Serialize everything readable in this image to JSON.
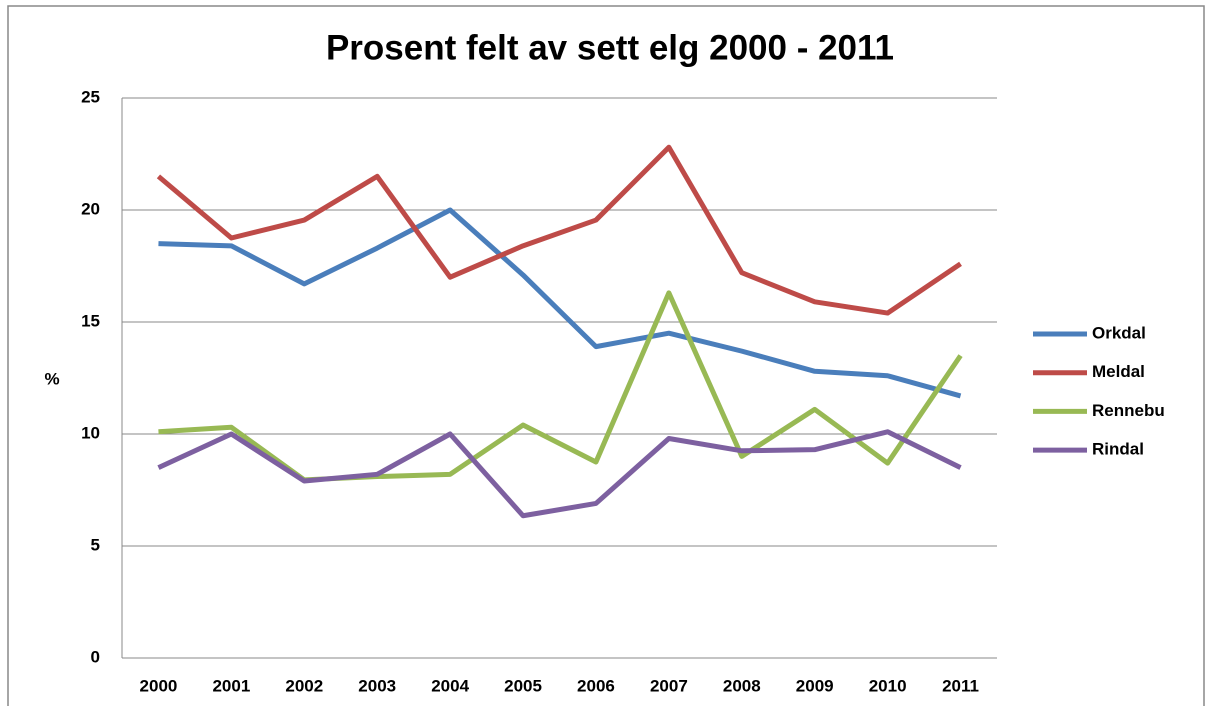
{
  "chart_data": {
    "type": "line",
    "title": "Prosent felt av sett elg 2000 - 2011",
    "y_label": "%",
    "categories": [
      "2000",
      "2001",
      "2002",
      "2003",
      "2004",
      "2005",
      "2006",
      "2007",
      "2008",
      "2009",
      "2010",
      "2011"
    ],
    "series": [
      {
        "name": "Orkdal",
        "color": "#4a7ebb",
        "values": [
          18.5,
          18.4,
          16.7,
          18.3,
          20.0,
          17.1,
          13.9,
          14.5,
          13.7,
          12.8,
          12.6,
          11.7
        ]
      },
      {
        "name": "Meldal",
        "color": "#be4b48",
        "values": [
          21.5,
          18.75,
          19.55,
          21.5,
          17.0,
          18.4,
          19.55,
          22.8,
          17.2,
          15.9,
          15.4,
          17.6
        ]
      },
      {
        "name": "Rennebu",
        "color": "#98b954",
        "values": [
          10.1,
          10.3,
          7.95,
          8.1,
          8.2,
          10.4,
          8.75,
          16.3,
          9.0,
          11.1,
          8.7,
          13.5
        ]
      },
      {
        "name": "Rindal",
        "color": "#7d60a0",
        "values": [
          8.5,
          10.0,
          7.9,
          8.2,
          10.0,
          6.35,
          6.9,
          9.8,
          9.25,
          9.3,
          10.1,
          8.5
        ]
      }
    ],
    "ylim": [
      0,
      25
    ],
    "yticks": [
      0,
      5,
      10,
      15,
      20,
      25
    ],
    "grid": true,
    "legend": "right"
  }
}
